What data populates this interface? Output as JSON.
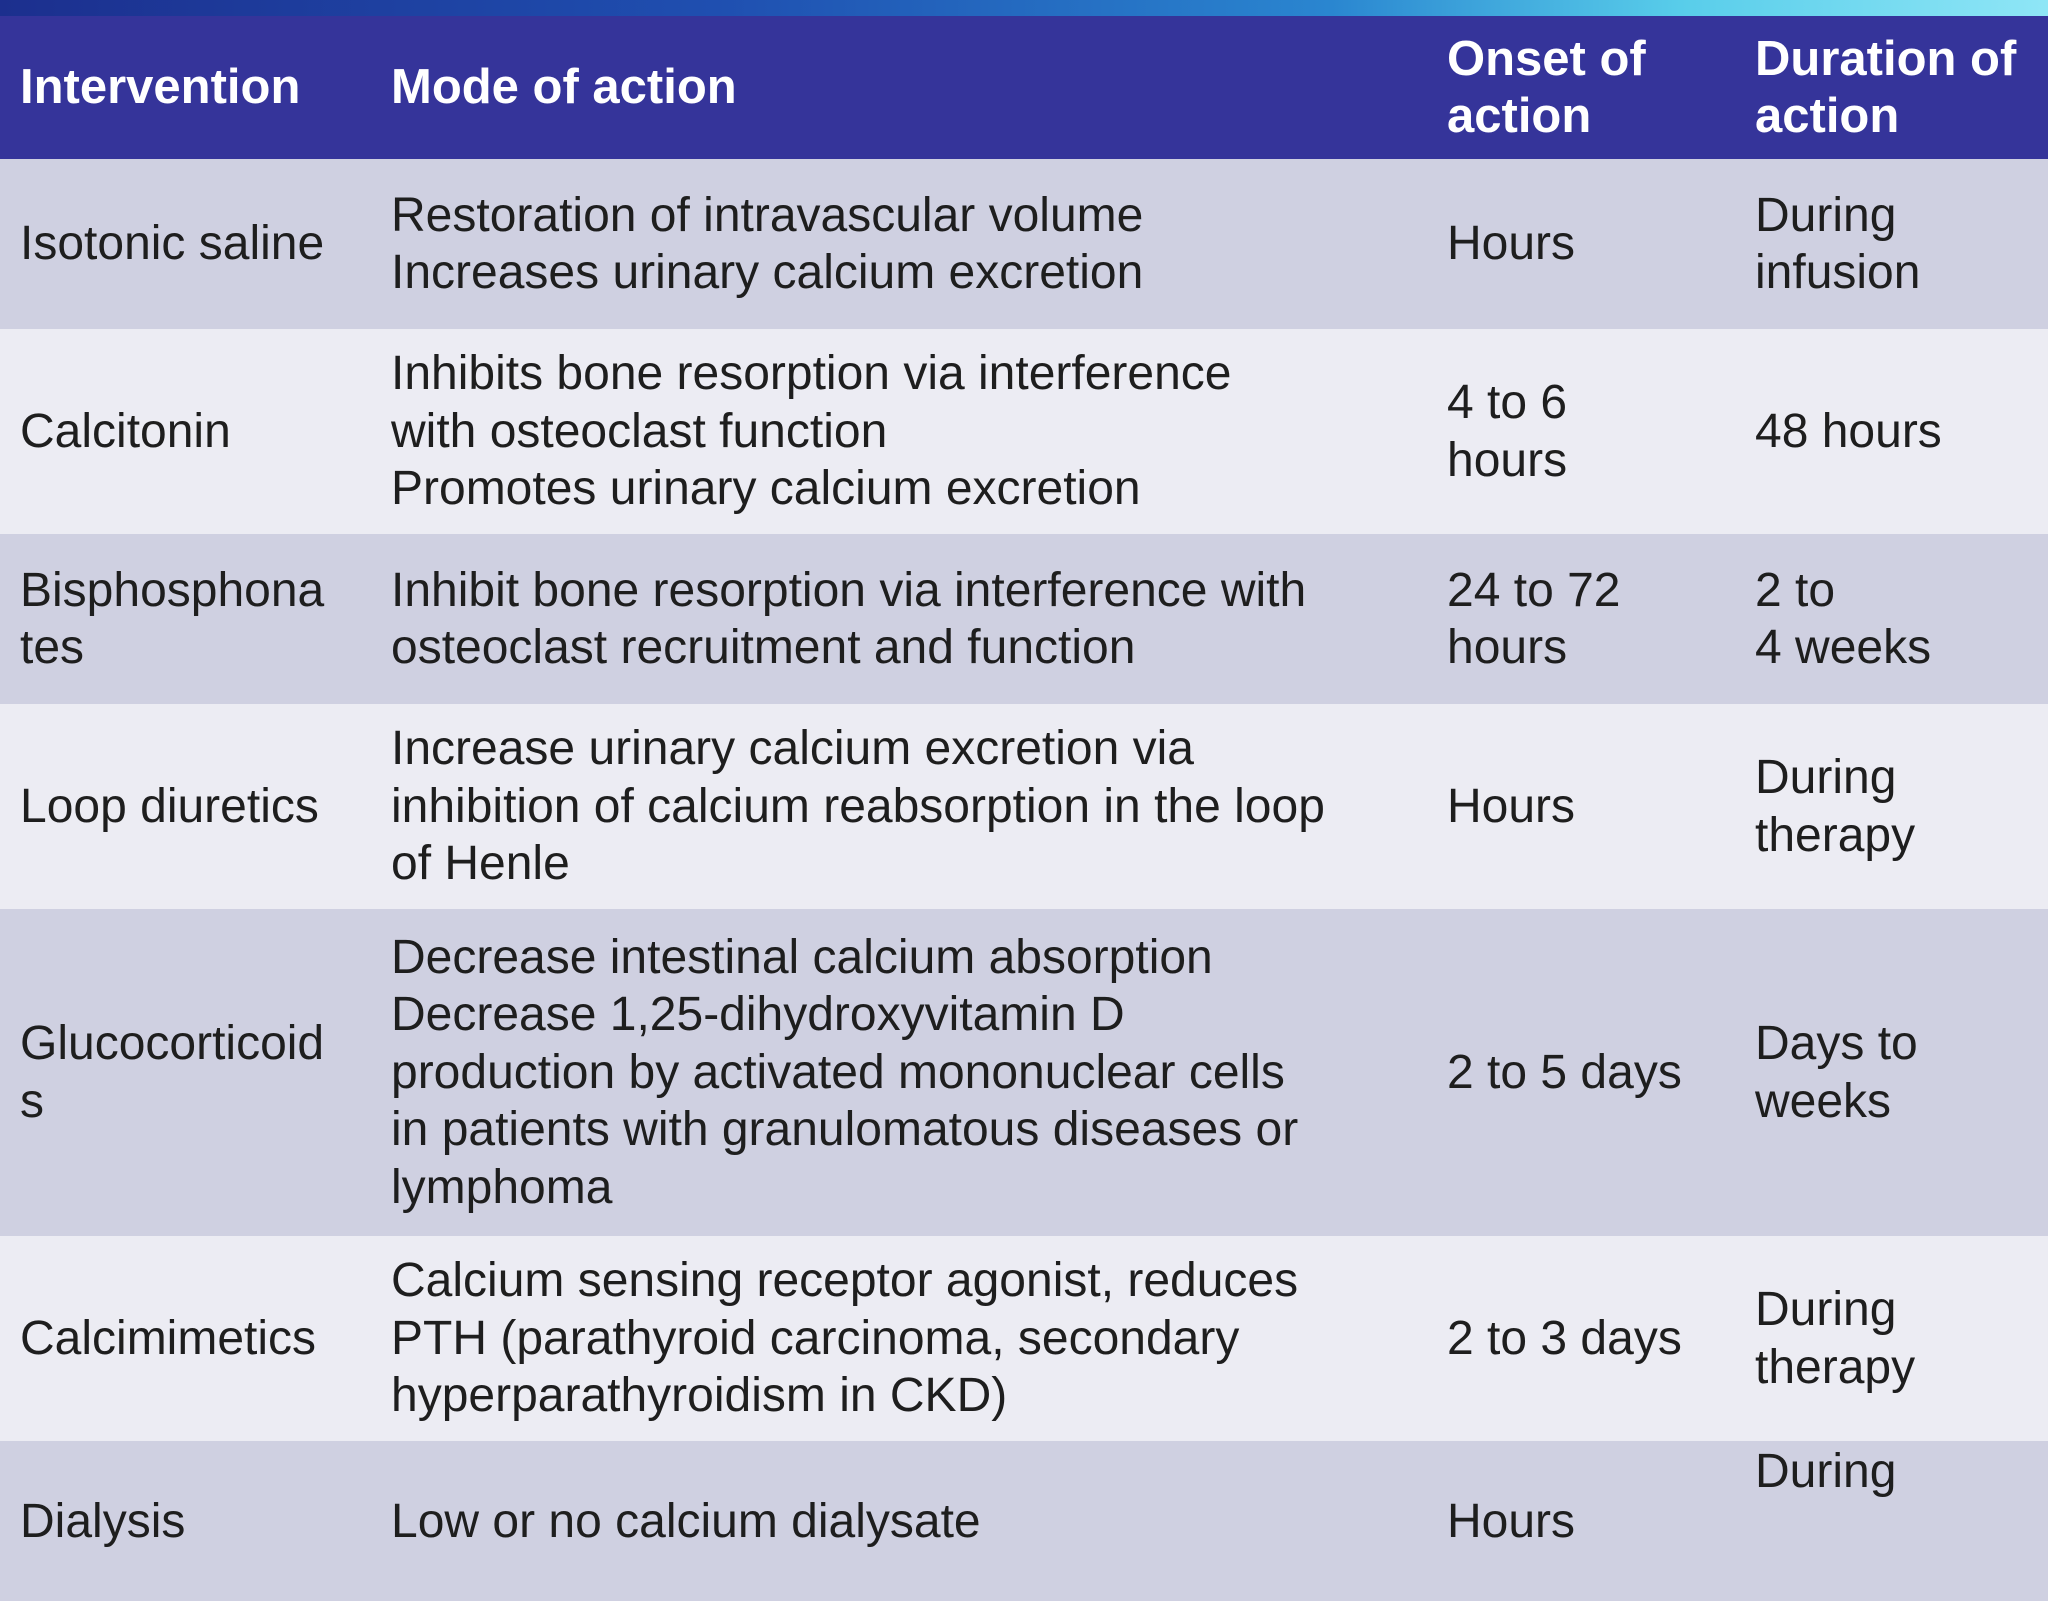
{
  "table": {
    "headers": {
      "intervention": "Intervention",
      "mode": "Mode of action",
      "onset": "Onset of\naction",
      "duration": "Duration of\naction"
    },
    "rows": [
      {
        "intervention": "Isotonic saline",
        "mode": "Restoration of intravascular volume\nIncreases urinary calcium excretion",
        "onset": "Hours",
        "duration": "During\ninfusion"
      },
      {
        "intervention": "Calcitonin",
        "mode": "Inhibits bone resorption via interference\nwith osteoclast function\nPromotes urinary calcium excretion",
        "onset": "4 to 6\nhours",
        "duration": "48 hours"
      },
      {
        "intervention": "Bisphosphona\ntes",
        "mode": "Inhibit bone resorption via interference with\nosteoclast recruitment and function",
        "onset": "24 to 72\nhours",
        "duration": "2 to\n4 weeks"
      },
      {
        "intervention": "Loop diuretics",
        "mode": "Increase urinary calcium excretion via\ninhibition of calcium reabsorption in the loop\nof Henle",
        "onset": "Hours",
        "duration": "During\ntherapy"
      },
      {
        "intervention": "Glucocorticoid\ns",
        "mode": "Decrease intestinal calcium absorption\nDecrease 1,25-dihydroxyvitamin D\nproduction by activated mononuclear cells\nin patients with granulomatous diseases or\nlymphoma",
        "onset": "2 to 5 days",
        "duration": "Days to\nweeks"
      },
      {
        "intervention": "Calcimimetics",
        "mode": "Calcium sensing receptor agonist, reduces\nPTH (parathyroid carcinoma, secondary\nhyperparathyroidism in CKD)",
        "onset": "2 to 3 days",
        "duration": "During\ntherapy"
      },
      {
        "intervention": "Dialysis",
        "mode": "Low or no calcium dialysate",
        "onset": "Hours",
        "duration": "During"
      }
    ]
  },
  "colors": {
    "header_bg": "#35349a",
    "row_odd": "#cfd0e1",
    "row_even": "#ececf3",
    "header_text": "#ffffff"
  }
}
